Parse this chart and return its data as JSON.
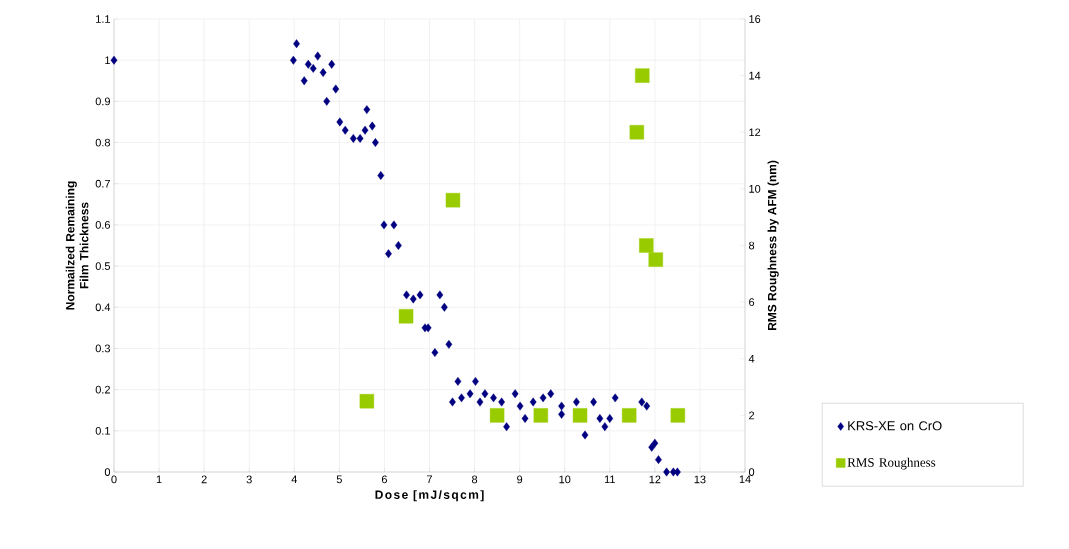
{
  "chart_data": {
    "type": "scatter",
    "xlabel": "Dose [mJ/sqcm]",
    "ylabel": "Normailzed Remaining Film Thickness",
    "y2label": "RMS Roughness by AFM (nm)",
    "xlim": [
      0,
      14
    ],
    "xticks": [
      0,
      1,
      2,
      3,
      4,
      5,
      6,
      7,
      8,
      9,
      10,
      11,
      12,
      13,
      14
    ],
    "ylim": [
      0,
      1.1
    ],
    "yticks": [
      0,
      0.1,
      0.2,
      0.3,
      0.4,
      0.5,
      0.6,
      0.7,
      0.8,
      0.9,
      1,
      1.1
    ],
    "y2lim": [
      0,
      16
    ],
    "y2ticks": [
      0,
      2,
      4,
      6,
      8,
      10,
      12,
      14,
      16
    ],
    "grid": true,
    "legend": "bottom right",
    "series": [
      {
        "name": "KRS-XE on CrO",
        "color": "#000080",
        "marker": "diamond",
        "x": [
          0,
          4.05,
          3.98,
          4.22,
          4.31,
          4.52,
          4.42,
          4.64,
          4.83,
          4.72,
          4.92,
          5.01,
          5.13,
          5.31,
          5.46,
          5.57,
          5.61,
          5.73,
          5.8,
          5.92,
          5.99,
          6.21,
          6.09,
          6.31,
          6.49,
          6.64,
          6.79,
          7.23,
          7.33,
          6.9,
          6.97,
          7.12,
          7.43,
          7.63,
          8.02,
          7.51,
          7.71,
          7.9,
          8.12,
          8.23,
          8.42,
          8.6,
          8.71,
          8.9,
          9.01,
          9.12,
          9.3,
          9.52,
          9.69,
          9.93,
          9.93,
          10.26,
          10.64,
          10.45,
          10.78,
          10.89,
          11.0,
          11.12,
          11.71,
          11.82,
          11.93,
          12.0,
          12.08,
          12.26,
          12.41,
          12.5
        ],
        "values": [
          1,
          1.04,
          1.0,
          0.95,
          0.99,
          1.01,
          0.98,
          0.97,
          0.99,
          0.9,
          0.93,
          0.85,
          0.83,
          0.81,
          0.81,
          0.83,
          0.88,
          0.84,
          0.8,
          0.72,
          0.6,
          0.6,
          0.53,
          0.55,
          0.43,
          0.42,
          0.43,
          0.43,
          0.4,
          0.35,
          0.35,
          0.29,
          0.31,
          0.22,
          0.22,
          0.17,
          0.18,
          0.19,
          0.17,
          0.19,
          0.18,
          0.17,
          0.11,
          0.19,
          0.16,
          0.13,
          0.17,
          0.18,
          0.19,
          0.16,
          0.14,
          0.17,
          0.17,
          0.09,
          0.13,
          0.11,
          0.13,
          0.18,
          0.17,
          0.16,
          0.06,
          0.07,
          0.03,
          0,
          0,
          0
        ]
      },
      {
        "name": "RMS Roughness",
        "color": "#99cc00",
        "marker": "square",
        "axis": "y2",
        "x": [
          5.61,
          6.48,
          7.52,
          8.5,
          9.47,
          10.34,
          11.43,
          12.51,
          11.6,
          11.72,
          11.81,
          12.02
        ],
        "values": [
          2.5,
          5.5,
          9.6,
          2,
          2,
          2,
          2,
          2,
          12,
          14,
          8,
          7.5
        ]
      }
    ]
  }
}
